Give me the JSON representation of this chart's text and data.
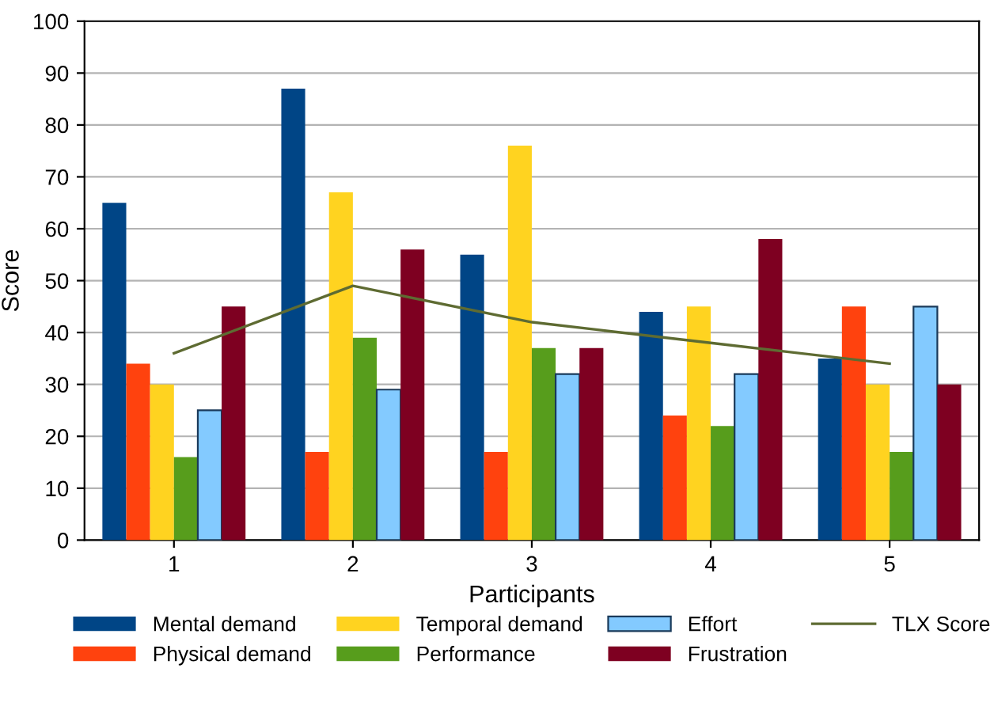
{
  "chart_data": {
    "type": "bar",
    "xlabel": "Participants",
    "ylabel": "Score",
    "categories": [
      "1",
      "2",
      "3",
      "4",
      "5"
    ],
    "series": [
      {
        "name": "Mental demand",
        "color": "#004586",
        "values": [
          65,
          87,
          55,
          44,
          35
        ]
      },
      {
        "name": "Physical demand",
        "color": "#ff420e",
        "values": [
          34,
          17,
          17,
          24,
          45
        ]
      },
      {
        "name": "Temporal demand",
        "color": "#ffd320",
        "values": [
          30,
          67,
          76,
          45,
          30
        ]
      },
      {
        "name": "Performance",
        "color": "#579d1c",
        "values": [
          16,
          39,
          37,
          22,
          17
        ]
      },
      {
        "name": "Effort",
        "color": "#83caff",
        "values": [
          25,
          29,
          32,
          32,
          45
        ]
      },
      {
        "name": "Frustration",
        "color": "#7e0021",
        "values": [
          45,
          56,
          37,
          58,
          30
        ]
      },
      {
        "name": "TLX Score",
        "color": "#5e6b32",
        "type": "line",
        "values": [
          36,
          49,
          42,
          38,
          34
        ]
      }
    ],
    "ylim": [
      0,
      100
    ],
    "yticks": [
      0,
      10,
      20,
      30,
      40,
      50,
      60,
      70,
      80,
      90,
      100
    ],
    "grid": "y",
    "legend": "bottom",
    "marker": "none"
  }
}
